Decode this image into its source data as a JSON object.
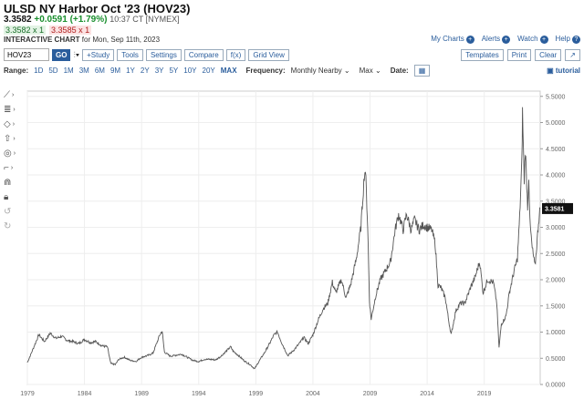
{
  "header": {
    "title": "ULSD NY Harbor Oct '23 (HOV23)",
    "last": "3.3582",
    "change": "+0.0591 (+1.79%)",
    "time": "10:37 CT [NYMEX]",
    "bid": "3.3582 x 1",
    "ask": "3.3585 x 1",
    "chart_label": "INTERACTIVE CHART",
    "chart_date": "for Mon, Sep 11th, 2023"
  },
  "toplinks": {
    "my_charts": "My Charts",
    "alerts": "Alerts",
    "watch": "Watch",
    "help": "Help"
  },
  "toolbar": {
    "symbol": "HOV23",
    "go": "GO",
    "study": "+Study",
    "tools": "Tools",
    "settings": "Settings",
    "compare": "Compare",
    "fx": "f(x)",
    "grid_view": "Grid View",
    "templates": "Templates",
    "print": "Print",
    "clear": "Clear",
    "expand": "↗"
  },
  "range": {
    "label": "Range:",
    "options": [
      "1D",
      "5D",
      "1M",
      "3M",
      "6M",
      "9M",
      "1Y",
      "2Y",
      "3Y",
      "5Y",
      "10Y",
      "20Y",
      "MAX"
    ],
    "active": "MAX",
    "frequency_label": "Frequency:",
    "frequency": "Monthly Nearby",
    "max_label": "Max",
    "date_label": "Date:",
    "tutorial": "tutorial"
  },
  "sidebar_icons": [
    "line-tool-icon",
    "fib-tool-icon",
    "shape-tool-icon",
    "arrow-tool-icon",
    "eye-icon",
    "measure-tool-icon",
    "magnet-icon",
    "lock-icon",
    "undo-icon",
    "redo-icon"
  ],
  "chart_data": {
    "type": "line",
    "x_ticks": [
      "1979",
      "1984",
      "1989",
      "1994",
      "1999",
      "2004",
      "2009",
      "2014",
      "2019"
    ],
    "y_ticks": [
      "0.0000",
      "0.5000",
      "1.0000",
      "1.5000",
      "2.0000",
      "2.5000",
      "3.0000",
      "3.5000",
      "4.0000",
      "4.5000",
      "5.0000",
      "5.5000"
    ],
    "ylim": [
      0,
      5.6
    ],
    "xlim": [
      1979,
      2023.9
    ],
    "last_value": "3.3581",
    "series": [
      {
        "values": [
          [
            1979.0,
            0.42
          ],
          [
            1979.5,
            0.68
          ],
          [
            1980.0,
            0.95
          ],
          [
            1980.5,
            0.82
          ],
          [
            1981.0,
            0.98
          ],
          [
            1981.5,
            0.88
          ],
          [
            1982.0,
            0.92
          ],
          [
            1982.5,
            0.84
          ],
          [
            1983.0,
            0.82
          ],
          [
            1983.5,
            0.78
          ],
          [
            1984.0,
            0.86
          ],
          [
            1984.5,
            0.8
          ],
          [
            1985.0,
            0.82
          ],
          [
            1985.5,
            0.74
          ],
          [
            1986.0,
            0.72
          ],
          [
            1986.3,
            0.4
          ],
          [
            1986.7,
            0.38
          ],
          [
            1987.0,
            0.48
          ],
          [
            1987.5,
            0.52
          ],
          [
            1988.0,
            0.46
          ],
          [
            1988.5,
            0.44
          ],
          [
            1989.0,
            0.52
          ],
          [
            1989.5,
            0.55
          ],
          [
            1990.0,
            0.6
          ],
          [
            1990.6,
            0.95
          ],
          [
            1990.8,
            1.02
          ],
          [
            1991.0,
            0.62
          ],
          [
            1991.5,
            0.54
          ],
          [
            1992.0,
            0.56
          ],
          [
            1992.5,
            0.58
          ],
          [
            1993.0,
            0.52
          ],
          [
            1993.5,
            0.46
          ],
          [
            1994.0,
            0.44
          ],
          [
            1994.5,
            0.48
          ],
          [
            1995.0,
            0.48
          ],
          [
            1995.5,
            0.47
          ],
          [
            1996.0,
            0.55
          ],
          [
            1996.8,
            0.72
          ],
          [
            1997.0,
            0.64
          ],
          [
            1997.5,
            0.55
          ],
          [
            1998.0,
            0.45
          ],
          [
            1998.5,
            0.38
          ],
          [
            1998.9,
            0.3
          ],
          [
            1999.3,
            0.45
          ],
          [
            1999.8,
            0.62
          ],
          [
            2000.2,
            0.78
          ],
          [
            2000.6,
            0.95
          ],
          [
            2000.9,
            1.0
          ],
          [
            2001.3,
            0.78
          ],
          [
            2001.8,
            0.55
          ],
          [
            2002.3,
            0.65
          ],
          [
            2002.8,
            0.78
          ],
          [
            2003.2,
            0.9
          ],
          [
            2003.6,
            0.78
          ],
          [
            2004.0,
            0.95
          ],
          [
            2004.5,
            1.25
          ],
          [
            2004.9,
            1.45
          ],
          [
            2005.3,
            1.55
          ],
          [
            2005.7,
            1.95
          ],
          [
            2006.0,
            1.75
          ],
          [
            2006.5,
            2.0
          ],
          [
            2006.9,
            1.65
          ],
          [
            2007.3,
            1.9
          ],
          [
            2007.8,
            2.4
          ],
          [
            2008.2,
            3.0
          ],
          [
            2008.5,
            4.0
          ],
          [
            2008.6,
            4.1
          ],
          [
            2008.8,
            3.0
          ],
          [
            2008.95,
            1.6
          ],
          [
            2009.1,
            1.25
          ],
          [
            2009.5,
            1.7
          ],
          [
            2009.9,
            2.0
          ],
          [
            2010.3,
            2.15
          ],
          [
            2010.8,
            2.35
          ],
          [
            2011.2,
            2.95
          ],
          [
            2011.5,
            3.25
          ],
          [
            2011.9,
            2.95
          ],
          [
            2012.2,
            3.25
          ],
          [
            2012.6,
            2.95
          ],
          [
            2012.9,
            3.15
          ],
          [
            2013.3,
            2.95
          ],
          [
            2013.7,
            3.05
          ],
          [
            2014.0,
            3.0
          ],
          [
            2014.4,
            2.95
          ],
          [
            2014.7,
            2.7
          ],
          [
            2014.95,
            1.9
          ],
          [
            2015.2,
            1.85
          ],
          [
            2015.6,
            1.65
          ],
          [
            2015.9,
            1.2
          ],
          [
            2016.1,
            0.95
          ],
          [
            2016.5,
            1.4
          ],
          [
            2016.9,
            1.55
          ],
          [
            2017.3,
            1.55
          ],
          [
            2017.8,
            1.85
          ],
          [
            2018.2,
            2.05
          ],
          [
            2018.6,
            2.35
          ],
          [
            2018.9,
            1.75
          ],
          [
            2019.3,
            2.0
          ],
          [
            2019.8,
            1.95
          ],
          [
            2020.1,
            1.55
          ],
          [
            2020.3,
            0.7
          ],
          [
            2020.5,
            1.15
          ],
          [
            2020.9,
            1.3
          ],
          [
            2021.2,
            1.75
          ],
          [
            2021.6,
            2.15
          ],
          [
            2021.9,
            2.4
          ],
          [
            2022.1,
            3.2
          ],
          [
            2022.3,
            4.3
          ],
          [
            2022.35,
            5.2
          ],
          [
            2022.5,
            3.9
          ],
          [
            2022.6,
            4.5
          ],
          [
            2022.8,
            3.4
          ],
          [
            2022.9,
            4.0
          ],
          [
            2023.0,
            3.1
          ],
          [
            2023.2,
            2.6
          ],
          [
            2023.45,
            2.25
          ],
          [
            2023.6,
            2.65
          ],
          [
            2023.75,
            3.1
          ],
          [
            2023.9,
            3.36
          ]
        ]
      }
    ]
  }
}
